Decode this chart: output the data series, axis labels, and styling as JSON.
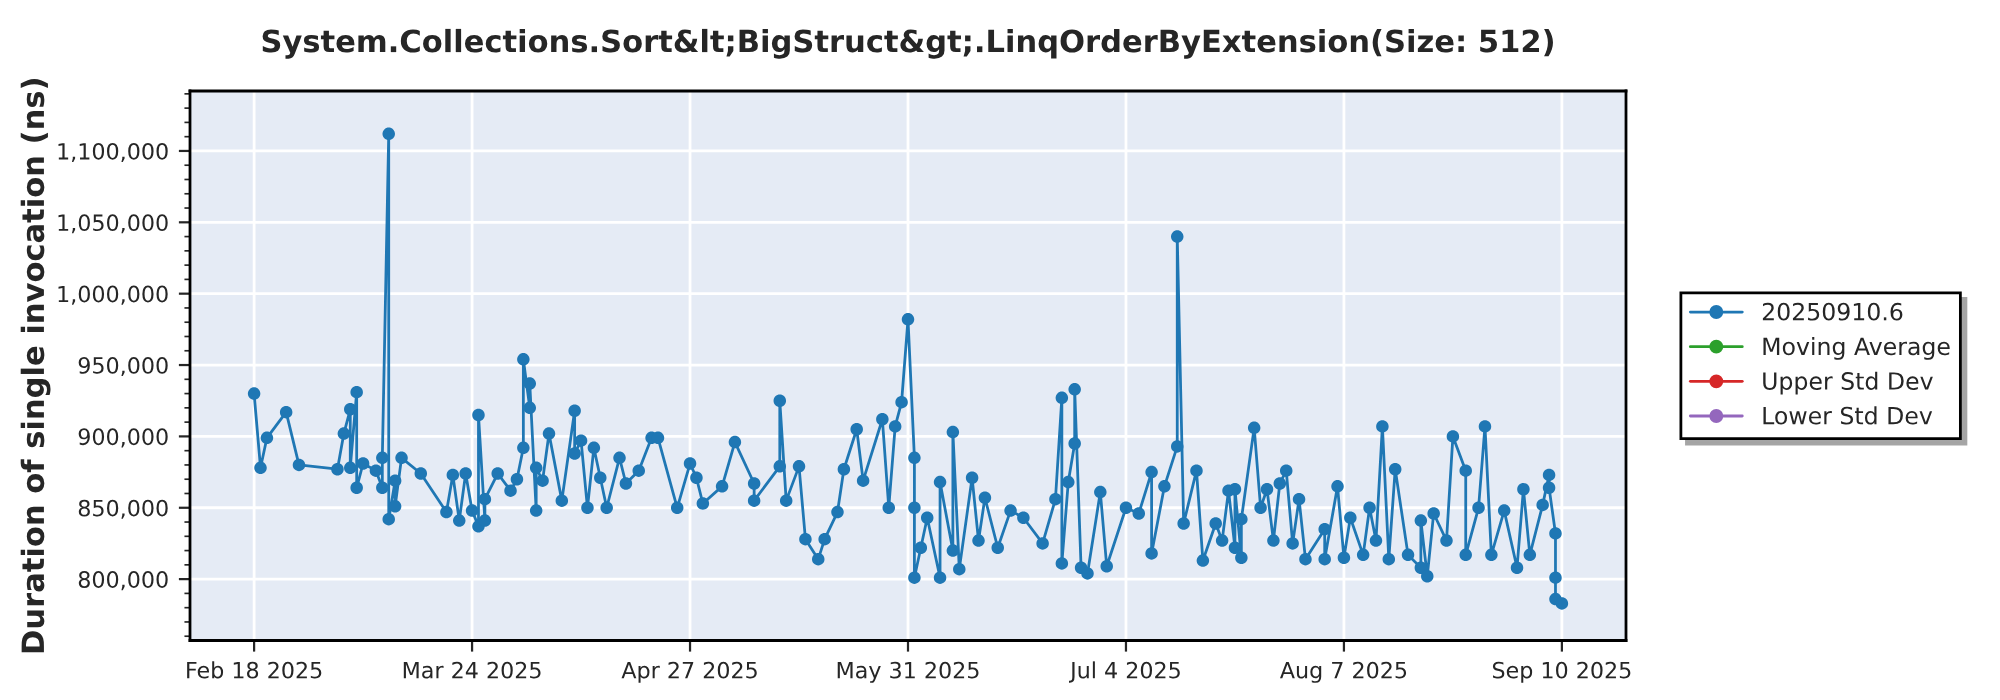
{
  "chart_data": {
    "type": "line",
    "title": "System.Collections.Sort&lt;BigStruct&gt;.LinqOrderByExtension(Size: 512)",
    "ylabel": "Duration of single invocation (ns)",
    "xlim": [
      "2025-02-08",
      "2025-09-20"
    ],
    "xticks": [
      {
        "value": "2025-02-18",
        "label": "Feb 18 2025"
      },
      {
        "value": "2025-03-24",
        "label": "Mar 24 2025"
      },
      {
        "value": "2025-04-27",
        "label": "Apr 27 2025"
      },
      {
        "value": "2025-05-31",
        "label": "May 31 2025"
      },
      {
        "value": "2025-07-04",
        "label": "Jul 4 2025"
      },
      {
        "value": "2025-08-07",
        "label": "Aug 7 2025"
      },
      {
        "value": "2025-09-10",
        "label": "Sep 10 2025"
      }
    ],
    "ylim": [
      757000,
      1142000
    ],
    "yticks": [
      {
        "value": 800000,
        "label": "800,000"
      },
      {
        "value": 850000,
        "label": "850,000"
      },
      {
        "value": 900000,
        "label": "900,000"
      },
      {
        "value": 950000,
        "label": "950,000"
      },
      {
        "value": 1000000,
        "label": "1,000,000"
      },
      {
        "value": 1050000,
        "label": "1,050,000"
      },
      {
        "value": 1100000,
        "label": "1,100,000"
      }
    ],
    "grid": true,
    "legend": "right",
    "marker": "circle",
    "line_style": "solid",
    "series": [
      {
        "name": "20250910.6",
        "color": "#1f77b4",
        "x": [
          "2025-02-18",
          "2025-02-19",
          "2025-02-20",
          "2025-02-23",
          "2025-02-25",
          "2025-03-03",
          "2025-03-04",
          "2025-03-05",
          "2025-03-05",
          "2025-03-06",
          "2025-03-06",
          "2025-03-07",
          "2025-03-09",
          "2025-03-10",
          "2025-03-10",
          "2025-03-11",
          "2025-03-11",
          "2025-03-12",
          "2025-03-12",
          "2025-03-13",
          "2025-03-16",
          "2025-03-20",
          "2025-03-21",
          "2025-03-22",
          "2025-03-23",
          "2025-03-24",
          "2025-03-25",
          "2025-03-25",
          "2025-03-26",
          "2025-03-26",
          "2025-03-28",
          "2025-03-30",
          "2025-03-31",
          "2025-04-01",
          "2025-04-01",
          "2025-04-02",
          "2025-04-02",
          "2025-04-03",
          "2025-04-03",
          "2025-04-04",
          "2025-04-05",
          "2025-04-07",
          "2025-04-09",
          "2025-04-09",
          "2025-04-10",
          "2025-04-11",
          "2025-04-12",
          "2025-04-13",
          "2025-04-14",
          "2025-04-16",
          "2025-04-17",
          "2025-04-19",
          "2025-04-21",
          "2025-04-22",
          "2025-04-25",
          "2025-04-27",
          "2025-04-28",
          "2025-04-29",
          "2025-05-02",
          "2025-05-04",
          "2025-05-07",
          "2025-05-07",
          "2025-05-11",
          "2025-05-11",
          "2025-05-12",
          "2025-05-14",
          "2025-05-15",
          "2025-05-17",
          "2025-05-18",
          "2025-05-20",
          "2025-05-21",
          "2025-05-23",
          "2025-05-24",
          "2025-05-27",
          "2025-05-28",
          "2025-05-29",
          "2025-05-30",
          "2025-05-31",
          "2025-06-01",
          "2025-06-01",
          "2025-06-01",
          "2025-06-02",
          "2025-06-03",
          "2025-06-05",
          "2025-06-05",
          "2025-06-07",
          "2025-06-07",
          "2025-06-08",
          "2025-06-10",
          "2025-06-11",
          "2025-06-12",
          "2025-06-14",
          "2025-06-16",
          "2025-06-18",
          "2025-06-21",
          "2025-06-23",
          "2025-06-24",
          "2025-06-24",
          "2025-06-25",
          "2025-06-26",
          "2025-06-26",
          "2025-06-27",
          "2025-06-28",
          "2025-06-30",
          "2025-07-01",
          "2025-07-04",
          "2025-07-06",
          "2025-07-08",
          "2025-07-08",
          "2025-07-10",
          "2025-07-12",
          "2025-07-12",
          "2025-07-13",
          "2025-07-15",
          "2025-07-16",
          "2025-07-18",
          "2025-07-19",
          "2025-07-20",
          "2025-07-21",
          "2025-07-21",
          "2025-07-22",
          "2025-07-22",
          "2025-07-24",
          "2025-07-25",
          "2025-07-26",
          "2025-07-27",
          "2025-07-28",
          "2025-07-29",
          "2025-07-30",
          "2025-07-31",
          "2025-08-01",
          "2025-08-04",
          "2025-08-04",
          "2025-08-06",
          "2025-08-07",
          "2025-08-08",
          "2025-08-10",
          "2025-08-11",
          "2025-08-12",
          "2025-08-13",
          "2025-08-14",
          "2025-08-15",
          "2025-08-17",
          "2025-08-19",
          "2025-08-19",
          "2025-08-20",
          "2025-08-21",
          "2025-08-23",
          "2025-08-24",
          "2025-08-26",
          "2025-08-26",
          "2025-08-28",
          "2025-08-29",
          "2025-08-30",
          "2025-09-01",
          "2025-09-03",
          "2025-09-04",
          "2025-09-05",
          "2025-09-07",
          "2025-09-08",
          "2025-09-08",
          "2025-09-09",
          "2025-09-09",
          "2025-09-09",
          "2025-09-10"
        ],
        "values": [
          930000,
          878000,
          899000,
          917000,
          880000,
          877000,
          902000,
          919000,
          878000,
          931000,
          864000,
          881000,
          876000,
          864000,
          885000,
          1112000,
          842000,
          869000,
          851000,
          885000,
          874000,
          847000,
          873000,
          841000,
          874000,
          848000,
          837000,
          915000,
          841000,
          856000,
          874000,
          862000,
          870000,
          892000,
          954000,
          920000,
          937000,
          848000,
          878000,
          869000,
          902000,
          855000,
          918000,
          888000,
          897000,
          850000,
          892000,
          871000,
          850000,
          885000,
          867000,
          876000,
          899000,
          899000,
          850000,
          881000,
          871000,
          853000,
          865000,
          896000,
          867000,
          855000,
          879000,
          925000,
          855000,
          879000,
          828000,
          814000,
          828000,
          847000,
          877000,
          905000,
          869000,
          912000,
          850000,
          907000,
          924000,
          982000,
          885000,
          850000,
          801000,
          822000,
          843000,
          801000,
          868000,
          820000,
          903000,
          807000,
          871000,
          827000,
          857000,
          822000,
          848000,
          843000,
          825000,
          856000,
          927000,
          811000,
          868000,
          895000,
          933000,
          808000,
          804000,
          861000,
          809000,
          850000,
          846000,
          875000,
          818000,
          865000,
          893000,
          1040000,
          839000,
          876000,
          813000,
          839000,
          827000,
          862000,
          822000,
          863000,
          815000,
          842000,
          906000,
          850000,
          863000,
          827000,
          867000,
          876000,
          825000,
          856000,
          814000,
          835000,
          814000,
          865000,
          815000,
          843000,
          817000,
          850000,
          827000,
          907000,
          814000,
          877000,
          817000,
          808000,
          841000,
          802000,
          846000,
          827000,
          900000,
          876000,
          817000,
          850000,
          907000,
          817000,
          848000,
          808000,
          863000,
          817000,
          852000,
          873000,
          864000,
          832000,
          801000,
          786000,
          783000
        ]
      },
      {
        "name": "Moving Average",
        "color": "#2ca02c"
      },
      {
        "name": "Upper Std Dev",
        "color": "#d62728"
      },
      {
        "name": "Lower Std Dev",
        "color": "#9467bd"
      }
    ]
  }
}
